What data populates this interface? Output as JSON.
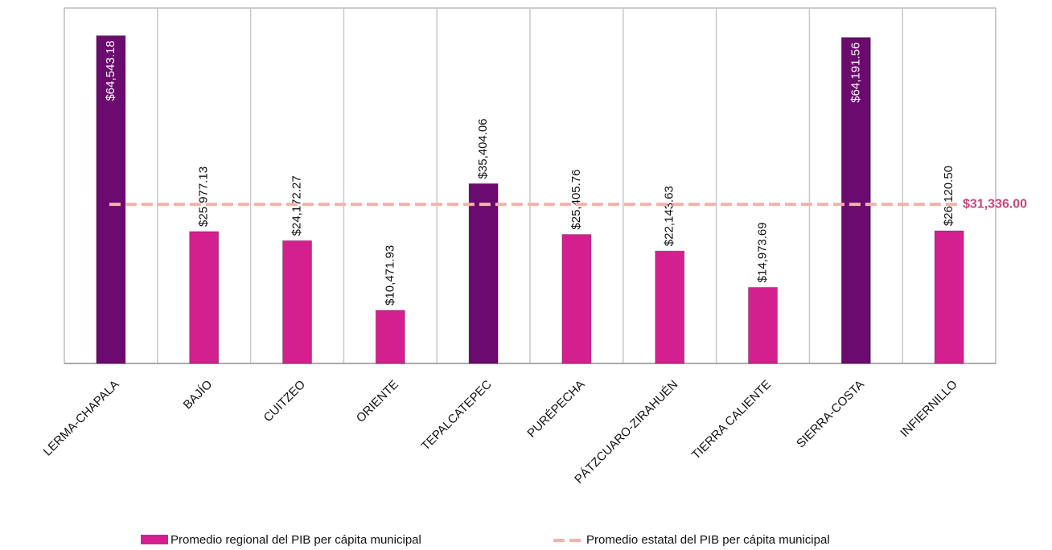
{
  "chart_data": {
    "type": "bar",
    "categories": [
      "LERMA-CHAPALA",
      "BAJÍO",
      "CUITZEO",
      "ORIENTE",
      "TEPALCATEPEC",
      "PURÉPECHA",
      "PÁTZCUARO-ZIRAHUÉN",
      "TIERRA CALIENTE",
      "SIERRA-COSTA",
      "INFIERNILLO"
    ],
    "series": [
      {
        "name": "Promedio regional del PIB per cápita municipal",
        "color": "#d4208f",
        "colors": [
          "#6b0a6f",
          "#d4208f",
          "#d4208f",
          "#d4208f",
          "#6b0a6f",
          "#d4208f",
          "#d4208f",
          "#d4208f",
          "#6b0a6f",
          "#d4208f"
        ],
        "values": [
          64543.18,
          25977.13,
          24172.27,
          10471.93,
          35404.06,
          25405.76,
          22143.63,
          14973.69,
          64191.56,
          26120.5
        ],
        "value_labels": [
          "$64,543.18",
          "$25,977.13",
          "$24,172.27",
          "$10,471.93",
          "$35,404.06",
          "$25,405.76",
          "$22,143.63",
          "$14,973.69",
          "$64,191.56",
          "$26,120.50"
        ]
      }
    ],
    "reference": {
      "name": "Promedio estatal del PIB per cápita municipal",
      "value": 31336,
      "label": "$31,336.00",
      "color": "#f2b3aa"
    },
    "ylim": [
      0,
      70000
    ]
  }
}
